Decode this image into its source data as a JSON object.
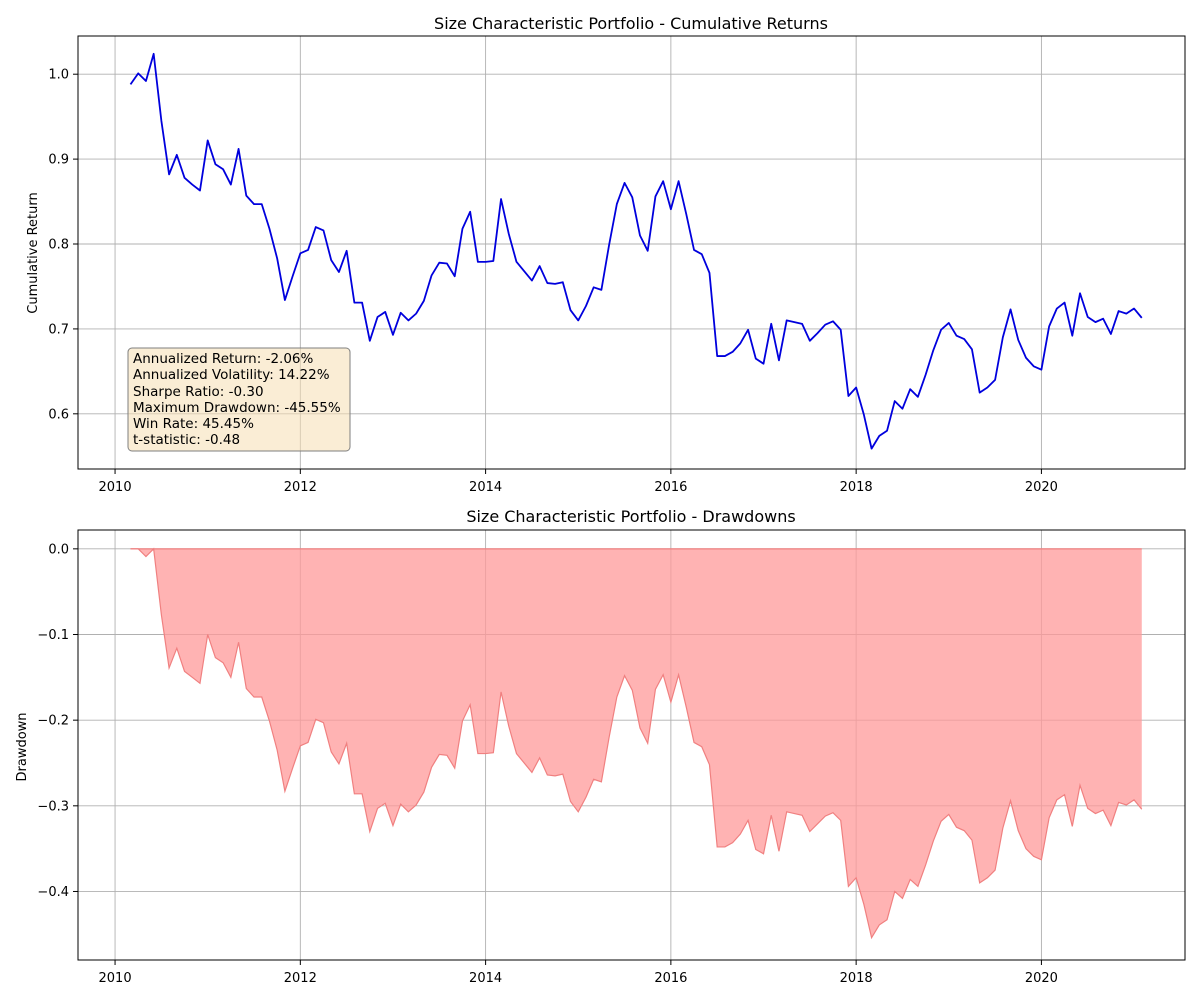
{
  "chart_data": [
    {
      "type": "line",
      "title": "Size Characteristic Portfolio - Cumulative Returns",
      "xlabel": "",
      "ylabel": "Cumulative Return",
      "xlim": [
        2009.6,
        2021.55
      ],
      "ylim": [
        0.535,
        1.045
      ],
      "x_ticks": [
        2010,
        2012,
        2014,
        2016,
        2018,
        2020
      ],
      "y_ticks": [
        0.6,
        0.7,
        0.8,
        0.9,
        1.0
      ],
      "y_tick_labels": [
        "0.6",
        "0.7",
        "0.8",
        "0.9",
        "1.0"
      ],
      "grid": true,
      "color": "#0000dd",
      "x_start": 2010.1667,
      "x_step": 0.083333,
      "values": [
        0.988,
        1.001,
        0.992,
        1.024,
        0.945,
        0.882,
        0.905,
        0.878,
        0.87,
        0.863,
        0.922,
        0.894,
        0.888,
        0.87,
        0.912,
        0.857,
        0.847,
        0.847,
        0.818,
        0.783,
        0.734,
        0.762,
        0.789,
        0.793,
        0.82,
        0.816,
        0.781,
        0.767,
        0.792,
        0.731,
        0.731,
        0.686,
        0.714,
        0.72,
        0.693,
        0.719,
        0.71,
        0.718,
        0.733,
        0.763,
        0.778,
        0.777,
        0.762,
        0.818,
        0.838,
        0.779,
        0.779,
        0.78,
        0.853,
        0.812,
        0.779,
        0.768,
        0.757,
        0.774,
        0.754,
        0.753,
        0.755,
        0.722,
        0.71,
        0.727,
        0.749,
        0.746,
        0.799,
        0.847,
        0.872,
        0.855,
        0.81,
        0.792,
        0.856,
        0.874,
        0.841,
        0.874,
        0.835,
        0.793,
        0.788,
        0.766,
        0.668,
        0.668,
        0.673,
        0.683,
        0.699,
        0.665,
        0.659,
        0.706,
        0.663,
        0.71,
        0.708,
        0.706,
        0.686,
        0.695,
        0.705,
        0.709,
        0.699,
        0.621,
        0.631,
        0.599,
        0.559,
        0.574,
        0.58,
        0.615,
        0.606,
        0.629,
        0.62,
        0.646,
        0.675,
        0.699,
        0.707,
        0.692,
        0.688,
        0.676,
        0.625,
        0.631,
        0.64,
        0.69,
        0.723,
        0.687,
        0.666,
        0.656,
        0.652,
        0.703,
        0.724,
        0.731,
        0.692,
        0.742,
        0.714,
        0.708,
        0.712,
        0.694,
        0.721,
        0.718,
        0.724,
        0.713
      ],
      "stats_box": {
        "lines": [
          "Annualized Return: -2.06%",
          "Annualized Volatility: 14.22%",
          "Sharpe Ratio: -0.30",
          "Maximum Drawdown: -45.55%",
          "Win Rate: 45.45%",
          "t-statistic: -0.48"
        ],
        "placement": "lower-left"
      }
    },
    {
      "type": "area",
      "title": "Size Characteristic Portfolio - Drawdowns",
      "xlabel": "",
      "ylabel": "Drawdown",
      "xlim": [
        2009.6,
        2021.55
      ],
      "ylim": [
        -0.48,
        0.022
      ],
      "x_ticks": [
        2010,
        2012,
        2014,
        2016,
        2018,
        2020
      ],
      "y_ticks": [
        0.0,
        -0.1,
        -0.2,
        -0.3,
        -0.4
      ],
      "y_tick_labels": [
        "0.0",
        "−0.1",
        "−0.2",
        "−0.3",
        "−0.4"
      ],
      "grid": true,
      "fill_color": "#ff9999",
      "line_color": "#f08080",
      "baseline": 0,
      "x_start": 2010.1667,
      "x_step": 0.083333,
      "values": [
        0.0,
        0.0,
        -0.009,
        0.0,
        -0.077,
        -0.139,
        -0.116,
        -0.143,
        -0.15,
        -0.157,
        -0.1,
        -0.127,
        -0.133,
        -0.15,
        -0.109,
        -0.163,
        -0.173,
        -0.173,
        -0.201,
        -0.235,
        -0.283,
        -0.256,
        -0.23,
        -0.226,
        -0.199,
        -0.203,
        -0.237,
        -0.251,
        -0.227,
        -0.286,
        -0.286,
        -0.33,
        -0.303,
        -0.297,
        -0.323,
        -0.298,
        -0.307,
        -0.299,
        -0.284,
        -0.255,
        -0.24,
        -0.241,
        -0.256,
        -0.201,
        -0.182,
        -0.239,
        -0.239,
        -0.238,
        -0.167,
        -0.207,
        -0.239,
        -0.25,
        -0.261,
        -0.244,
        -0.264,
        -0.265,
        -0.263,
        -0.295,
        -0.307,
        -0.29,
        -0.269,
        -0.272,
        -0.22,
        -0.173,
        -0.148,
        -0.165,
        -0.209,
        -0.227,
        -0.164,
        -0.147,
        -0.179,
        -0.147,
        -0.185,
        -0.226,
        -0.231,
        -0.252,
        -0.348,
        -0.348,
        -0.343,
        -0.333,
        -0.317,
        -0.351,
        -0.356,
        -0.311,
        -0.353,
        -0.307,
        -0.309,
        -0.311,
        -0.33,
        -0.321,
        -0.312,
        -0.308,
        -0.317,
        -0.394,
        -0.384,
        -0.415,
        -0.454,
        -0.439,
        -0.433,
        -0.4,
        -0.408,
        -0.386,
        -0.394,
        -0.369,
        -0.341,
        -0.318,
        -0.31,
        -0.325,
        -0.329,
        -0.34,
        -0.39,
        -0.384,
        -0.375,
        -0.326,
        -0.294,
        -0.329,
        -0.35,
        -0.359,
        -0.363,
        -0.314,
        -0.293,
        -0.287,
        -0.324,
        -0.276,
        -0.303,
        -0.309,
        -0.305,
        -0.323,
        -0.296,
        -0.299,
        -0.293,
        -0.304
      ]
    }
  ]
}
